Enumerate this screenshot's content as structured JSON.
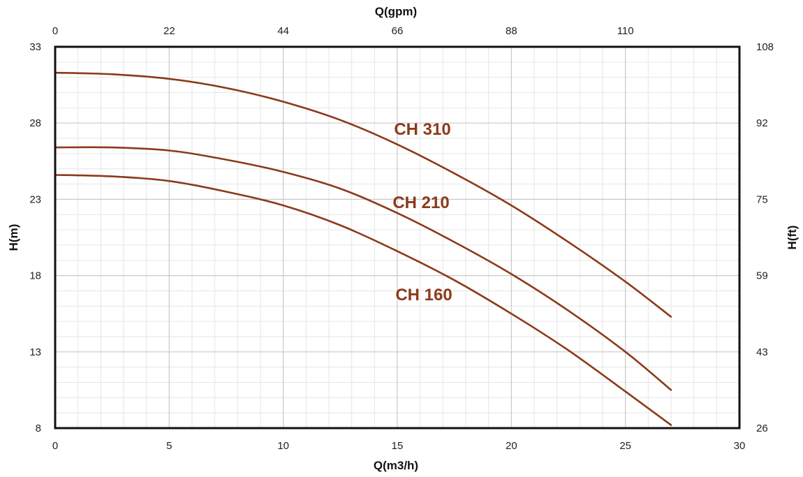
{
  "chart_data": {
    "type": "line",
    "title": "",
    "xlabel": "Q(m3/h)",
    "x2label": "Q(gpm)",
    "ylabel": "H(m)",
    "y2label": "H(ft)",
    "xlim": [
      0,
      30
    ],
    "ylim": [
      8,
      33
    ],
    "x_ticks": [
      "0",
      "5",
      "10",
      "15",
      "20",
      "25",
      "30"
    ],
    "x2_ticks": [
      "0",
      "22",
      "44",
      "66",
      "88",
      "110"
    ],
    "x2_tick_positions_m3h": [
      0,
      5,
      10,
      15,
      20,
      25
    ],
    "y_ticks": [
      "8",
      "13",
      "18",
      "23",
      "28",
      "33"
    ],
    "y2_ticks": [
      "26",
      "43",
      "59",
      "75",
      "92",
      "108"
    ],
    "y2_tick_positions_m": [
      8,
      13,
      18,
      23,
      28,
      33
    ],
    "grid": true,
    "line_color": "#8B3A1A",
    "series": [
      {
        "name": "CH 310",
        "x": [
          0,
          2.5,
          5,
          7.5,
          10,
          12.5,
          15,
          17.5,
          20,
          22.5,
          25,
          27
        ],
        "y": [
          31.3,
          31.2,
          30.9,
          30.3,
          29.4,
          28.2,
          26.6,
          24.7,
          22.6,
          20.2,
          17.6,
          15.3
        ]
      },
      {
        "name": "CH 210",
        "x": [
          0,
          2.5,
          5,
          7.5,
          10,
          12.5,
          15,
          17.5,
          20,
          22.5,
          25,
          27
        ],
        "y": [
          26.4,
          26.4,
          26.2,
          25.6,
          24.8,
          23.7,
          22.1,
          20.2,
          18.1,
          15.7,
          13.0,
          10.5
        ]
      },
      {
        "name": "CH 160",
        "x": [
          0,
          2.5,
          5,
          7.5,
          10,
          12.5,
          15,
          17.5,
          20,
          22.5,
          25,
          27
        ],
        "y": [
          24.6,
          24.5,
          24.2,
          23.5,
          22.6,
          21.3,
          19.6,
          17.7,
          15.5,
          13.1,
          10.4,
          8.2
        ]
      }
    ]
  }
}
